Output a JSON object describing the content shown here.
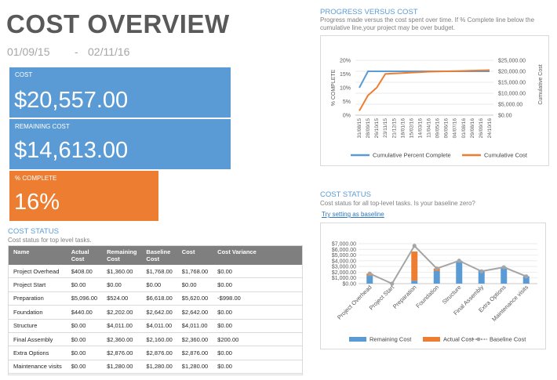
{
  "header": {
    "title": "COST OVERVIEW",
    "start_date": "01/09/15",
    "date_sep": "-",
    "end_date": "02/11/16"
  },
  "kpis": {
    "cost": {
      "label": "COST",
      "value": "$20,557.00"
    },
    "remaining": {
      "label": "REMAINING COST",
      "value": "$14,613.00"
    },
    "percent": {
      "label": "% COMPLETE",
      "value": "16%"
    }
  },
  "cost_status_table": {
    "title": "COST STATUS",
    "desc": "Cost status for top level tasks.",
    "columns": [
      "Name",
      "Actual Cost",
      "Remaining Cost",
      "Baseline Cost",
      "Cost",
      "Cost Variance"
    ],
    "rows": [
      [
        "Project Overhead",
        "$408.00",
        "$1,360.00",
        "$1,768.00",
        "$1,768.00",
        "$0.00"
      ],
      [
        "Project Start",
        "$0.00",
        "$0.00",
        "$0.00",
        "$0.00",
        "$0.00"
      ],
      [
        "Preparation",
        "$5,096.00",
        "$524.00",
        "$6,618.00",
        "$5,620.00",
        "-$998.00"
      ],
      [
        "Foundation",
        "$440.00",
        "$2,202.00",
        "$2,642.00",
        "$2,642.00",
        "$0.00"
      ],
      [
        "Structure",
        "$0.00",
        "$4,011.00",
        "$4,011.00",
        "$4,011.00",
        "$0.00"
      ],
      [
        "Final Assembly",
        "$0.00",
        "$2,360.00",
        "$2,160.00",
        "$2,360.00",
        "$200.00"
      ],
      [
        "Extra Options",
        "$0.00",
        "$2,876.00",
        "$2,876.00",
        "$2,876.00",
        "$0.00"
      ],
      [
        "Maintenance visits",
        "$0.00",
        "$1,280.00",
        "$1,280.00",
        "$1,280.00",
        "$0.00"
      ]
    ]
  },
  "progress_section": {
    "title": "PROGRESS VERSUS COST",
    "desc": "Progress made versus the cost spent over time. If % Complete line below the cumulative line,your project may be over budget."
  },
  "status_chart_section": {
    "title": "COST STATUS",
    "desc": "Cost status for all top-level tasks. Is your baseline zero?",
    "link": "Try setting as baseline"
  },
  "colors": {
    "blue": "#5b9bd5",
    "orange": "#ed7d31",
    "gray": "#a5a5a5"
  },
  "chart_data": [
    {
      "type": "line",
      "x": [
        "31/08/15",
        "28/09/15",
        "26/10/15",
        "23/11/15",
        "21/12/15",
        "18/01/16",
        "15/02/16",
        "14/03/16",
        "11/04/16",
        "09/05/16",
        "06/06/16",
        "04/07/16",
        "01/08/16",
        "29/08/16",
        "26/09/16",
        "24/10/16"
      ],
      "y_left": {
        "label": "% COMPLETE",
        "ticks": [
          "0%",
          "5%",
          "10%",
          "15%",
          "20%"
        ],
        "range": [
          0,
          20
        ]
      },
      "y_right": {
        "label": "Cumulative Cost",
        "ticks": [
          "$0.00",
          "$5,000.00",
          "$10,000.00",
          "$15,000.00",
          "$20,000.00",
          "$25,000.00"
        ],
        "range": [
          0,
          25000
        ]
      },
      "series": [
        {
          "name": "Cumulative Percent Complete",
          "axis": "left",
          "values": [
            10,
            16,
            16,
            16,
            16,
            16,
            16,
            16,
            16,
            16,
            16,
            16,
            16,
            16,
            16,
            16
          ]
        },
        {
          "name": "Cumulative Cost",
          "axis": "right",
          "values": [
            2000,
            9000,
            12500,
            18800,
            19000,
            19200,
            19400,
            19600,
            19800,
            19900,
            20000,
            20100,
            20200,
            20300,
            20400,
            20557
          ]
        }
      ]
    },
    {
      "type": "bar",
      "categories": [
        "Project Overhead",
        "Project Start",
        "Preparation",
        "Foundation",
        "Structure",
        "Final Assembly",
        "Extra Options",
        "Maintenance visits"
      ],
      "y_ticks": [
        "$0.00",
        "$1,000.00",
        "$2,000.00",
        "$3,000.00",
        "$4,000.00",
        "$5,000.00",
        "$6,000.00",
        "$7,000.00"
      ],
      "ylim": [
        0,
        7000
      ],
      "series": [
        {
          "name": "Remaining Cost",
          "values": [
            1360,
            0,
            524,
            2202,
            4011,
            2360,
            2876,
            1280
          ]
        },
        {
          "name": "Actual Cost",
          "values": [
            408,
            0,
            5096,
            440,
            0,
            0,
            0,
            0
          ]
        },
        {
          "name": "Baseline Cost",
          "values": [
            1768,
            0,
            6618,
            2642,
            4011,
            2160,
            2876,
            1280
          ]
        }
      ]
    }
  ]
}
